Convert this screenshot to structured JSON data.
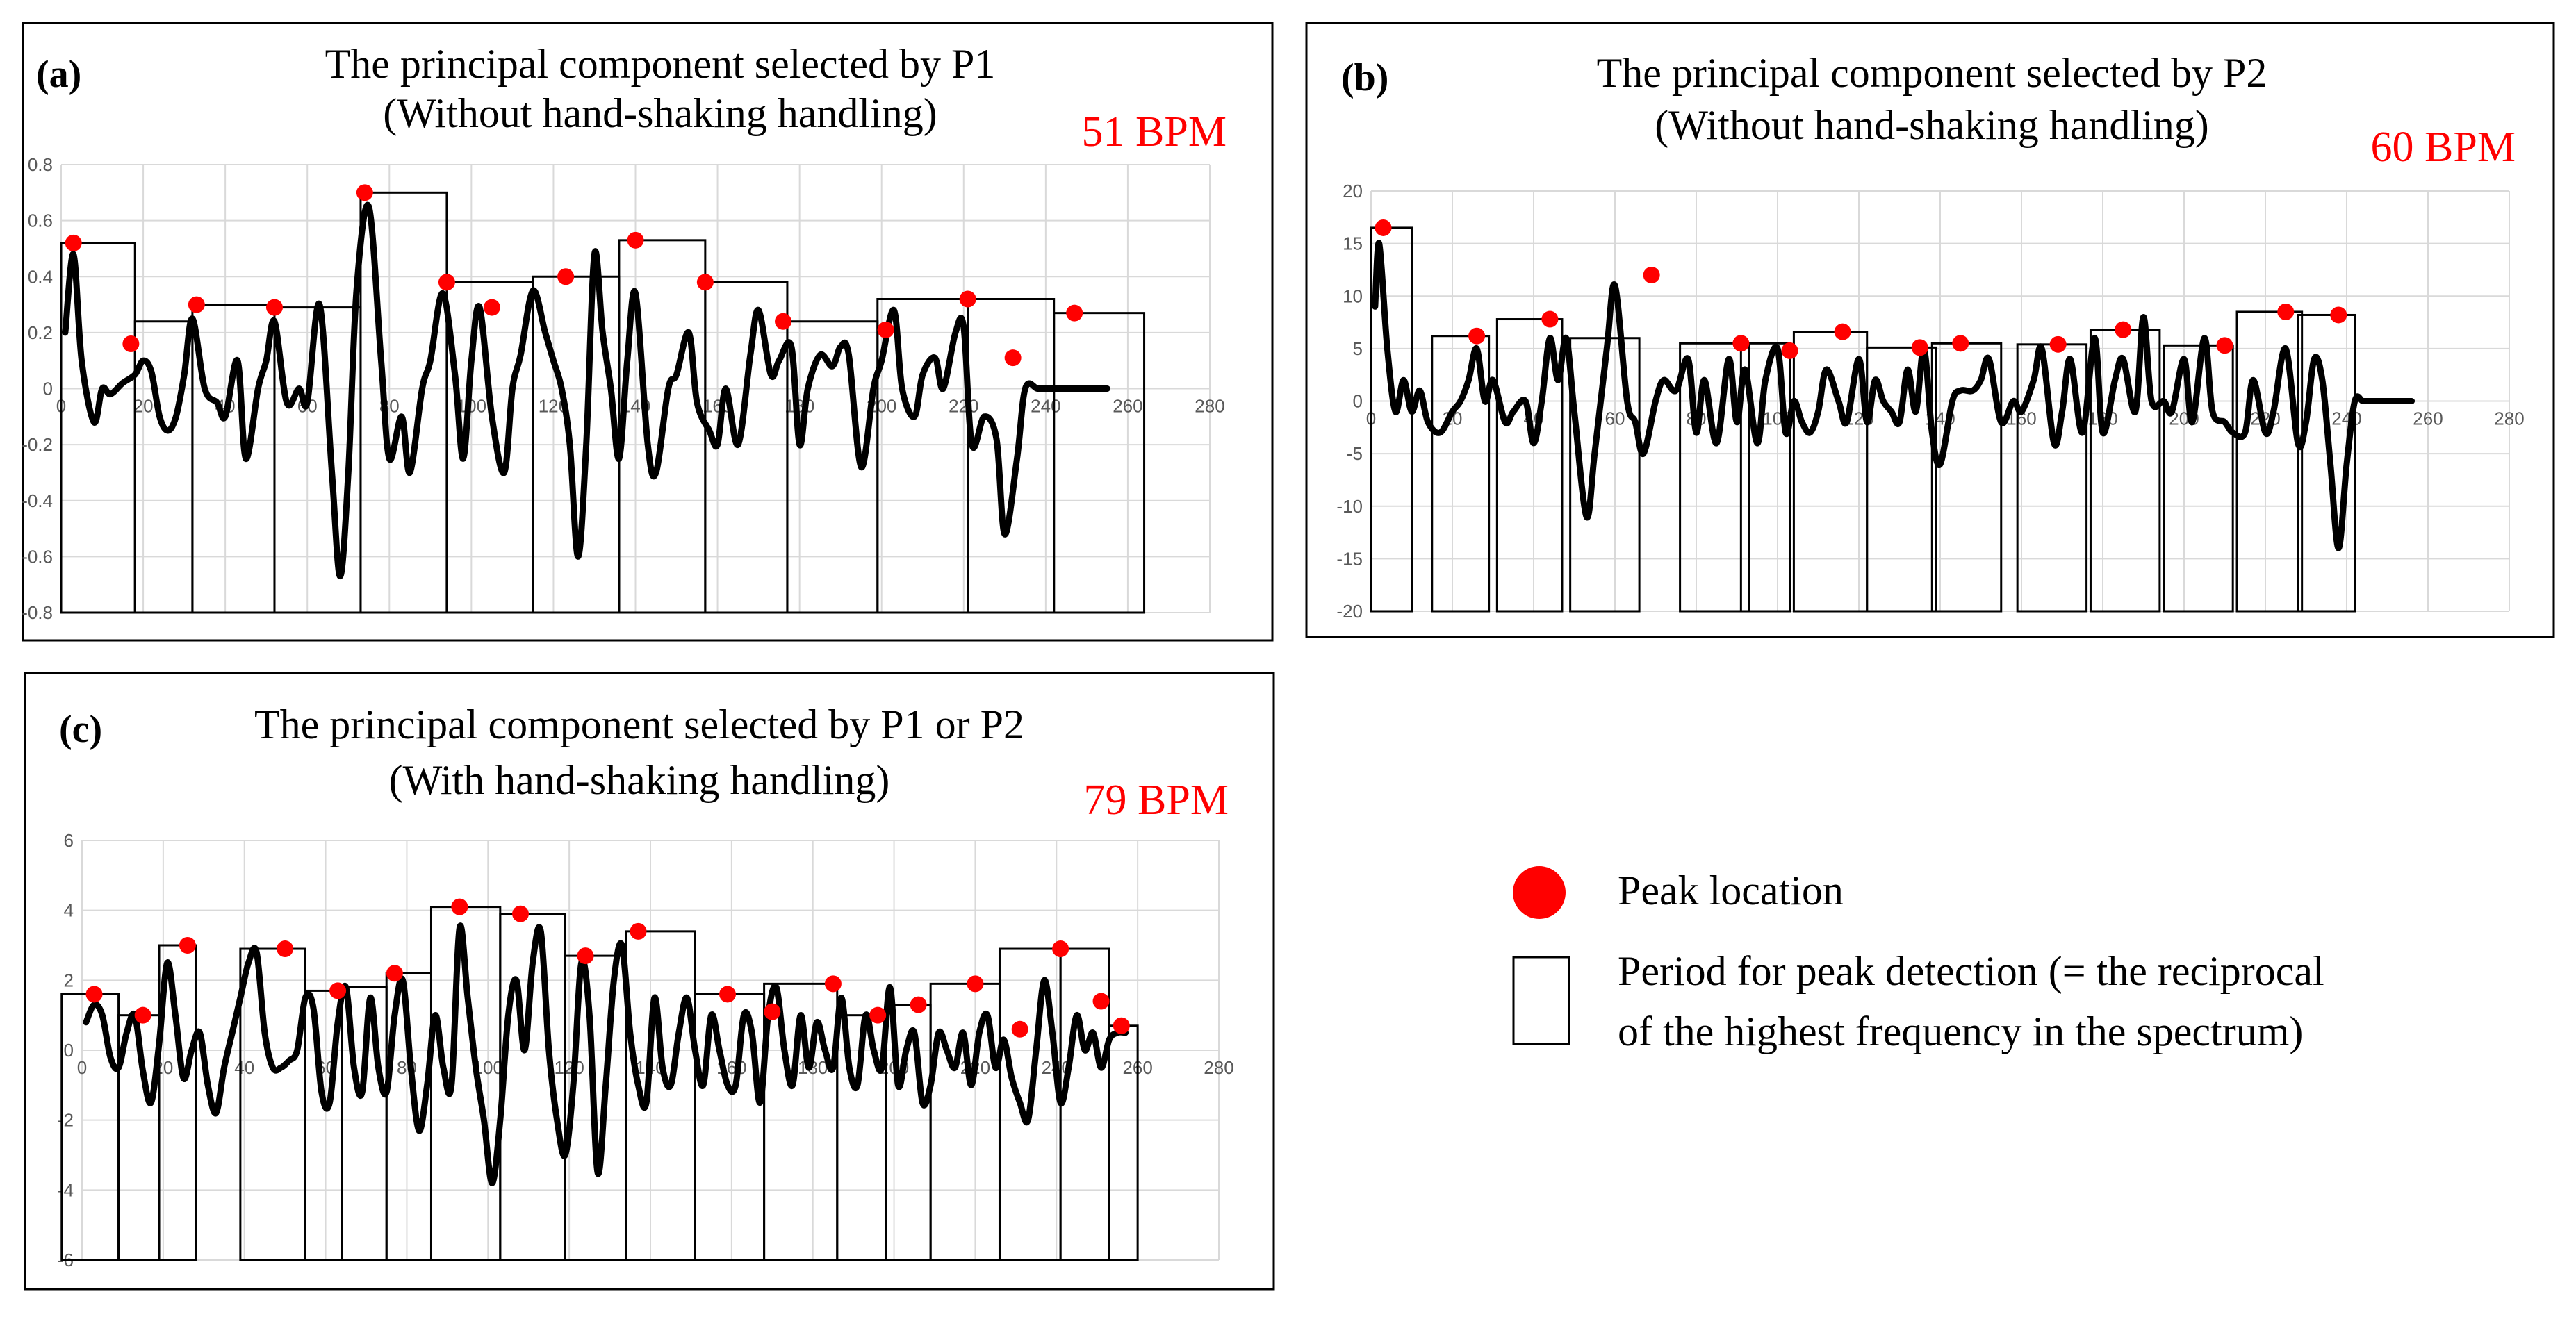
{
  "legend": {
    "peak_label": "Peak location",
    "period_label_line1": "Period for peak detection (= the reciprocal",
    "period_label_line2": "of the highest frequency in the spectrum)",
    "peak_color": "#ff0000"
  },
  "chart_data": [
    {
      "type": "line",
      "panel": "(a)",
      "title_line1": "The principal component selected by P1",
      "title_line2": "(Without hand-shaking handling)",
      "bpm": "51 BPM",
      "xlim": [
        0,
        280
      ],
      "ylim": [
        -0.8,
        0.8
      ],
      "xticks": [
        "0",
        "20",
        "40",
        "60",
        "80",
        "100",
        "120",
        "140",
        "160",
        "180",
        "200",
        "220",
        "240",
        "260",
        "280"
      ],
      "yticks": [
        "0.8",
        "0.6",
        "0.4",
        "0.2",
        "0",
        "-0.2",
        "-0.4",
        "-0.6",
        "-0.8"
      ],
      "series": [
        {
          "name": "principal component",
          "x": [
            1,
            3,
            5,
            8,
            10,
            12,
            15,
            18,
            20,
            22,
            24,
            26,
            28,
            30,
            32,
            35,
            38,
            40,
            43,
            45,
            48,
            50,
            52,
            55,
            58,
            60,
            63,
            66,
            68,
            70,
            72,
            75,
            78,
            80,
            83,
            85,
            88,
            90,
            93,
            96,
            98,
            100,
            102,
            105,
            108,
            110,
            112,
            115,
            118,
            120,
            122,
            124,
            126,
            128,
            130,
            132,
            134,
            136,
            138,
            140,
            143,
            145,
            148,
            150,
            153,
            155,
            158,
            160,
            162,
            165,
            168,
            170,
            173,
            175,
            178,
            180,
            182,
            185,
            188,
            190,
            192,
            195,
            198,
            200,
            203,
            205,
            208,
            210,
            213,
            215,
            218,
            220,
            222,
            225,
            228,
            230,
            233,
            235,
            238,
            240,
            243,
            245,
            248,
            250,
            253,
            255
          ],
          "values": [
            0.2,
            0.48,
            0.1,
            -0.12,
            0.0,
            -0.02,
            0.02,
            0.05,
            0.1,
            0.06,
            -0.1,
            -0.15,
            -0.1,
            0.05,
            0.25,
            0.0,
            -0.05,
            -0.1,
            0.1,
            -0.25,
            0.0,
            0.1,
            0.24,
            -0.05,
            0.0,
            -0.05,
            0.3,
            -0.3,
            -0.67,
            -0.3,
            0.35,
            0.65,
            0.1,
            -0.25,
            -0.1,
            -0.3,
            0.0,
            0.1,
            0.34,
            0.05,
            -0.25,
            0.1,
            0.29,
            -0.1,
            -0.3,
            0.0,
            0.12,
            0.35,
            0.2,
            0.1,
            0.0,
            -0.2,
            -0.6,
            -0.2,
            0.48,
            0.2,
            0.0,
            -0.25,
            0.1,
            0.34,
            -0.2,
            -0.3,
            0.0,
            0.05,
            0.2,
            -0.05,
            -0.15,
            -0.2,
            0.0,
            -0.2,
            0.12,
            0.28,
            0.05,
            0.1,
            0.15,
            -0.2,
            0.0,
            0.12,
            0.08,
            0.15,
            0.12,
            -0.28,
            0.0,
            0.1,
            0.28,
            0.0,
            -0.1,
            0.05,
            0.11,
            0.0,
            0.2,
            0.22,
            -0.2,
            -0.1,
            -0.18,
            -0.52,
            -0.25,
            0.0,
            0.0,
            0.0,
            0.0,
            0.0,
            0.0,
            0.0,
            0.0,
            0.0
          ]
        }
      ],
      "peaks": {
        "x": [
          3,
          17,
          33,
          52,
          74,
          94,
          105,
          123,
          140,
          157,
          176,
          201,
          221,
          232,
          247
        ],
        "y": [
          0.52,
          0.16,
          0.3,
          0.29,
          0.7,
          0.38,
          0.29,
          0.4,
          0.53,
          0.38,
          0.24,
          0.21,
          0.32,
          0.11,
          0.27
        ]
      },
      "periods": [
        [
          0,
          18
        ],
        [
          18,
          32
        ],
        [
          32,
          52
        ],
        [
          52,
          73
        ],
        [
          73,
          94
        ],
        [
          94,
          115
        ],
        [
          115,
          136
        ],
        [
          136,
          157
        ],
        [
          157,
          177
        ],
        [
          177,
          199
        ],
        [
          199,
          221
        ],
        [
          221,
          242
        ],
        [
          242,
          264
        ]
      ]
    },
    {
      "type": "line",
      "panel": "(b)",
      "title_line1": "The principal component selected by P2",
      "title_line2": "(Without hand-shaking handling)",
      "bpm": "60 BPM",
      "xlim": [
        0,
        280
      ],
      "ylim": [
        -20,
        20
      ],
      "xticks": [
        "0",
        "20",
        "40",
        "60",
        "80",
        "100",
        "120",
        "140",
        "160",
        "180",
        "200",
        "220",
        "240",
        "260",
        "280"
      ],
      "yticks": [
        "20",
        "15",
        "10",
        "5",
        "0",
        "-5",
        "-10",
        "-15",
        "-20"
      ],
      "series": [
        {
          "name": "principal component",
          "x": [
            1,
            2,
            4,
            6,
            8,
            10,
            12,
            14,
            17,
            20,
            22,
            24,
            26,
            28,
            30,
            33,
            35,
            38,
            40,
            42,
            44,
            46,
            48,
            50,
            53,
            55,
            58,
            60,
            63,
            65,
            67,
            70,
            72,
            75,
            78,
            80,
            82,
            85,
            88,
            90,
            92,
            95,
            97,
            100,
            102,
            104,
            106,
            108,
            110,
            112,
            115,
            117,
            120,
            122,
            124,
            126,
            128,
            130,
            132,
            134,
            136,
            138,
            140,
            143,
            145,
            148,
            150,
            152,
            155,
            158,
            160,
            163,
            165,
            168,
            170,
            172,
            175,
            178,
            180,
            183,
            185,
            188,
            190,
            192,
            195,
            197,
            200,
            202,
            205,
            207,
            210,
            212,
            215,
            217,
            220,
            222,
            225,
            228,
            230,
            232,
            234,
            236,
            238,
            240,
            242,
            244,
            246,
            248,
            250,
            252,
            255,
            256
          ],
          "values": [
            9,
            15,
            5,
            -1,
            2,
            -1,
            1,
            -2,
            -3,
            -1,
            0,
            2,
            5,
            0,
            2,
            -2,
            -1,
            0,
            -4,
            0,
            6,
            2,
            6,
            -1,
            -11,
            -5,
            5,
            11,
            0,
            -2,
            -5,
            0,
            2,
            1,
            4,
            -3,
            2,
            -4,
            4,
            -2,
            3,
            -4,
            2,
            5,
            -3,
            0,
            -2,
            -3,
            -1,
            3,
            0,
            -2,
            4,
            -2,
            2,
            0,
            -1,
            -2,
            3,
            -1,
            5,
            -3,
            -6,
            0,
            1,
            1,
            2,
            4,
            -2,
            0,
            -1,
            2,
            5,
            -4,
            -1,
            4,
            -3,
            6,
            -3,
            2,
            4,
            -1,
            8,
            0,
            0,
            -1,
            4,
            -2,
            6,
            -1,
            -2,
            -3,
            -3,
            2,
            -3,
            -1,
            5,
            -4,
            -2,
            4,
            2,
            -6,
            -14,
            -6,
            0,
            0,
            0,
            0,
            0,
            0,
            0,
            0
          ]
        }
      ],
      "peaks": {
        "x": [
          3,
          26,
          44,
          69,
          91,
          103,
          116,
          135,
          145,
          169,
          185,
          210,
          225,
          238
        ],
        "y": [
          16.5,
          6.2,
          7.8,
          12,
          5.5,
          4.8,
          6.6,
          5.1,
          5.5,
          5.4,
          6.8,
          5.3,
          8.5,
          8.2
        ]
      },
      "periods": [
        [
          0,
          10
        ],
        [
          15,
          29
        ],
        [
          31,
          47
        ],
        [
          49,
          66
        ],
        [
          76,
          93
        ],
        [
          91,
          103
        ],
        [
          104,
          122
        ],
        [
          122,
          139
        ],
        [
          138,
          155
        ],
        [
          159,
          176
        ],
        [
          177,
          194
        ],
        [
          195,
          212
        ],
        [
          213,
          229
        ],
        [
          228,
          242
        ]
      ]
    },
    {
      "type": "line",
      "panel": "(c)",
      "title_line1": "The principal component selected by P1 or P2",
      "title_line2": "(With hand-shaking handling)",
      "bpm": "79 BPM",
      "xlim": [
        0,
        280
      ],
      "ylim": [
        -6,
        6
      ],
      "xticks": [
        "0",
        "20",
        "40",
        "60",
        "80",
        "100",
        "120",
        "140",
        "160",
        "180",
        "200",
        "220",
        "240",
        "260",
        "280"
      ],
      "yticks": [
        "6",
        "4",
        "2",
        "0",
        "-2",
        "-4",
        "-6"
      ],
      "series": [
        {
          "name": "principal component",
          "x": [
            1,
            3,
            5,
            7,
            9,
            11,
            13,
            15,
            17,
            19,
            21,
            23,
            25,
            27,
            29,
            31,
            33,
            35,
            37,
            39,
            41,
            43,
            45,
            47,
            49,
            51,
            53,
            55,
            57,
            59,
            61,
            63,
            65,
            67,
            69,
            71,
            73,
            75,
            77,
            79,
            81,
            83,
            85,
            87,
            89,
            91,
            93,
            95,
            97,
            99,
            101,
            103,
            105,
            107,
            109,
            111,
            113,
            115,
            117,
            119,
            121,
            123,
            125,
            127,
            129,
            131,
            133,
            135,
            137,
            139,
            141,
            143,
            145,
            147,
            149,
            151,
            153,
            155,
            157,
            159,
            161,
            163,
            165,
            167,
            169,
            171,
            173,
            175,
            177,
            179,
            181,
            183,
            185,
            187,
            189,
            191,
            193,
            195,
            197,
            199,
            201,
            203,
            205,
            207,
            209,
            211,
            213,
            215,
            217,
            219,
            221,
            223,
            225,
            227,
            229,
            231,
            233,
            235,
            237,
            239,
            241,
            243,
            245,
            247,
            249,
            251,
            253,
            255,
            257
          ],
          "values": [
            0.8,
            1.3,
            1.0,
            -0.2,
            -0.5,
            0.5,
            1.0,
            -0.6,
            -1.5,
            0.2,
            2.5,
            1.0,
            -0.8,
            0.0,
            0.5,
            -1.0,
            -1.8,
            -0.5,
            0.5,
            1.5,
            2.5,
            2.8,
            0.5,
            -0.5,
            -0.5,
            -0.3,
            0.0,
            1.5,
            1.2,
            -1.2,
            -1.5,
            0.8,
            1.8,
            -0.5,
            -1.2,
            1.5,
            -0.5,
            -1.2,
            1.0,
            2.0,
            -0.5,
            -2.3,
            -1.0,
            1.0,
            -0.5,
            -1.0,
            3.5,
            1.5,
            -0.5,
            -2.0,
            -3.8,
            -2.0,
            1.0,
            2.0,
            0.0,
            2.5,
            3.4,
            0.0,
            -2.0,
            -3.0,
            -1.0,
            2.5,
            1.0,
            -3.5,
            -1.0,
            2.0,
            3.0,
            0.5,
            -1.0,
            -1.5,
            1.5,
            -0.5,
            -1.0,
            0.5,
            1.5,
            0.0,
            -1.0,
            1.0,
            0.0,
            -1.0,
            -1.0,
            1.0,
            0.5,
            -1.5,
            1.0,
            1.8,
            0.0,
            -1.0,
            1.0,
            -0.5,
            0.8,
            0.0,
            -0.5,
            1.5,
            -0.5,
            -1.0,
            1.0,
            0.0,
            -0.5,
            1.8,
            -1.0,
            0.0,
            0.5,
            -1.5,
            -1.0,
            0.5,
            0.0,
            -0.5,
            0.5,
            -1.0,
            0.5,
            1.0,
            -0.5,
            0.3,
            -0.8,
            -1.5,
            -2.0,
            0.0,
            2.0,
            0.5,
            -1.5,
            -0.5,
            1.0,
            0.0,
            0.5,
            -0.5,
            0.3,
            0.5,
            0.5
          ]
        }
      ],
      "peaks": {
        "x": [
          3,
          15,
          26,
          50,
          63,
          77,
          93,
          108,
          124,
          137,
          159,
          170,
          185,
          196,
          206,
          220,
          231,
          241,
          251,
          256
        ],
        "y": [
          1.6,
          1.0,
          3.0,
          2.9,
          1.7,
          2.2,
          4.1,
          3.9,
          2.7,
          3.4,
          1.6,
          1.1,
          1.9,
          1.0,
          1.3,
          1.9,
          0.6,
          2.9,
          1.4,
          0.7
        ]
      },
      "periods": [
        [
          -5,
          9
        ],
        [
          9,
          19
        ],
        [
          19,
          28
        ],
        [
          39,
          55
        ],
        [
          55,
          64
        ],
        [
          64,
          75
        ],
        [
          75,
          86
        ],
        [
          86,
          103
        ],
        [
          103,
          119
        ],
        [
          119,
          134
        ],
        [
          134,
          151
        ],
        [
          151,
          168
        ],
        [
          168,
          186
        ],
        [
          186,
          198
        ],
        [
          198,
          209
        ],
        [
          209,
          226
        ],
        [
          226,
          241
        ],
        [
          241,
          253
        ],
        [
          253,
          260
        ]
      ]
    }
  ]
}
